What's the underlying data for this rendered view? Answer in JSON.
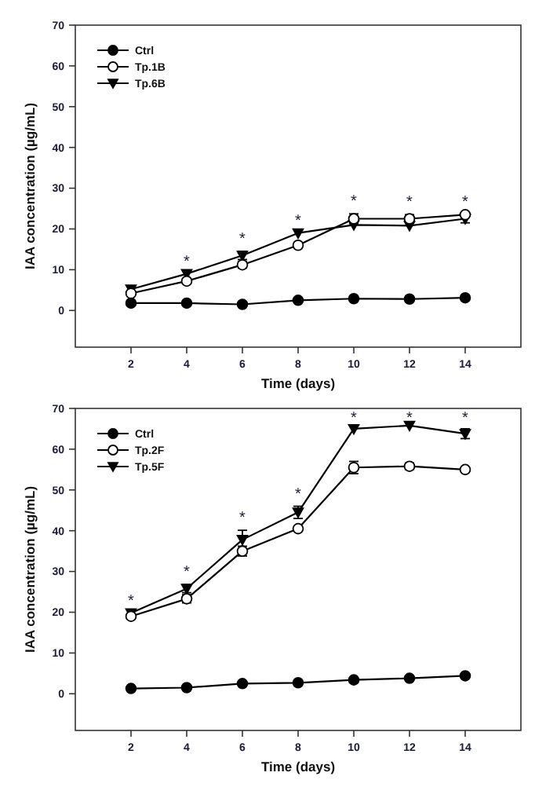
{
  "chart_data": [
    {
      "type": "line",
      "xlabel": "Time (days)",
      "ylabel": "IAA concentration (µg/mL)",
      "x": [
        2,
        4,
        6,
        8,
        10,
        12,
        14
      ],
      "xlim": [
        0,
        16
      ],
      "xticks": [
        2,
        4,
        6,
        8,
        10,
        12,
        14
      ],
      "ylim": [
        -9,
        70
      ],
      "yticks": [
        0,
        10,
        20,
        30,
        40,
        50,
        60,
        70
      ],
      "legend": "top left",
      "line_style": "solid",
      "series": [
        {
          "name": "Ctrl",
          "color": "#000000",
          "marker": "circle",
          "values": [
            1.8,
            1.8,
            1.5,
            2.5,
            2.9,
            2.8,
            3.1
          ]
        },
        {
          "name": "Tp.1B",
          "color": "#000000",
          "marker": "circle",
          "values": [
            4.2,
            7.2,
            11.2,
            16.0,
            22.5,
            22.5,
            23.5
          ],
          "errors": [
            null,
            null,
            0.8,
            null,
            1.2,
            1.0,
            null
          ]
        },
        {
          "name": "Tp.6B",
          "color": "#000000",
          "marker": "triangle",
          "values": [
            5.2,
            9.0,
            13.5,
            19.0,
            21.0,
            20.8,
            22.5
          ],
          "errors": [
            null,
            null,
            1.0,
            null,
            null,
            null,
            1.0
          ]
        }
      ],
      "annotations": [
        "*",
        "*",
        "*",
        "*",
        "*",
        "*"
      ]
    },
    {
      "type": "line",
      "xlabel": "Time (days)",
      "ylabel": "IAA concentration (µg/mL)",
      "x": [
        2,
        4,
        6,
        8,
        10,
        12,
        14
      ],
      "xlim": [
        0,
        16
      ],
      "xticks": [
        2,
        4,
        6,
        8,
        10,
        12,
        14
      ],
      "ylim": [
        -9,
        70
      ],
      "yticks": [
        0,
        10,
        20,
        30,
        40,
        50,
        60,
        70
      ],
      "legend": "top left",
      "line_style": "solid",
      "series": [
        {
          "name": "Ctrl",
          "color": "#000000",
          "marker": "circle",
          "values": [
            1.3,
            1.5,
            2.5,
            2.7,
            3.4,
            3.8,
            4.4
          ]
        },
        {
          "name": "Tp.2F",
          "color": "#000000",
          "marker": "circle",
          "values": [
            19.0,
            23.3,
            35.0,
            40.5,
            55.5,
            55.8,
            55.0
          ],
          "errors": [
            null,
            1.0,
            1.2,
            null,
            1.5,
            0.8,
            null
          ]
        },
        {
          "name": "Tp.5F",
          "color": "#000000",
          "marker": "triangle",
          "values": [
            19.8,
            25.8,
            37.8,
            44.5,
            65.0,
            65.8,
            63.8
          ],
          "errors": [
            null,
            1.0,
            2.3,
            1.5,
            null,
            null,
            1.2
          ]
        }
      ],
      "annotations": [
        "*",
        "*",
        "*",
        "*",
        "*",
        "*",
        "*"
      ]
    }
  ]
}
